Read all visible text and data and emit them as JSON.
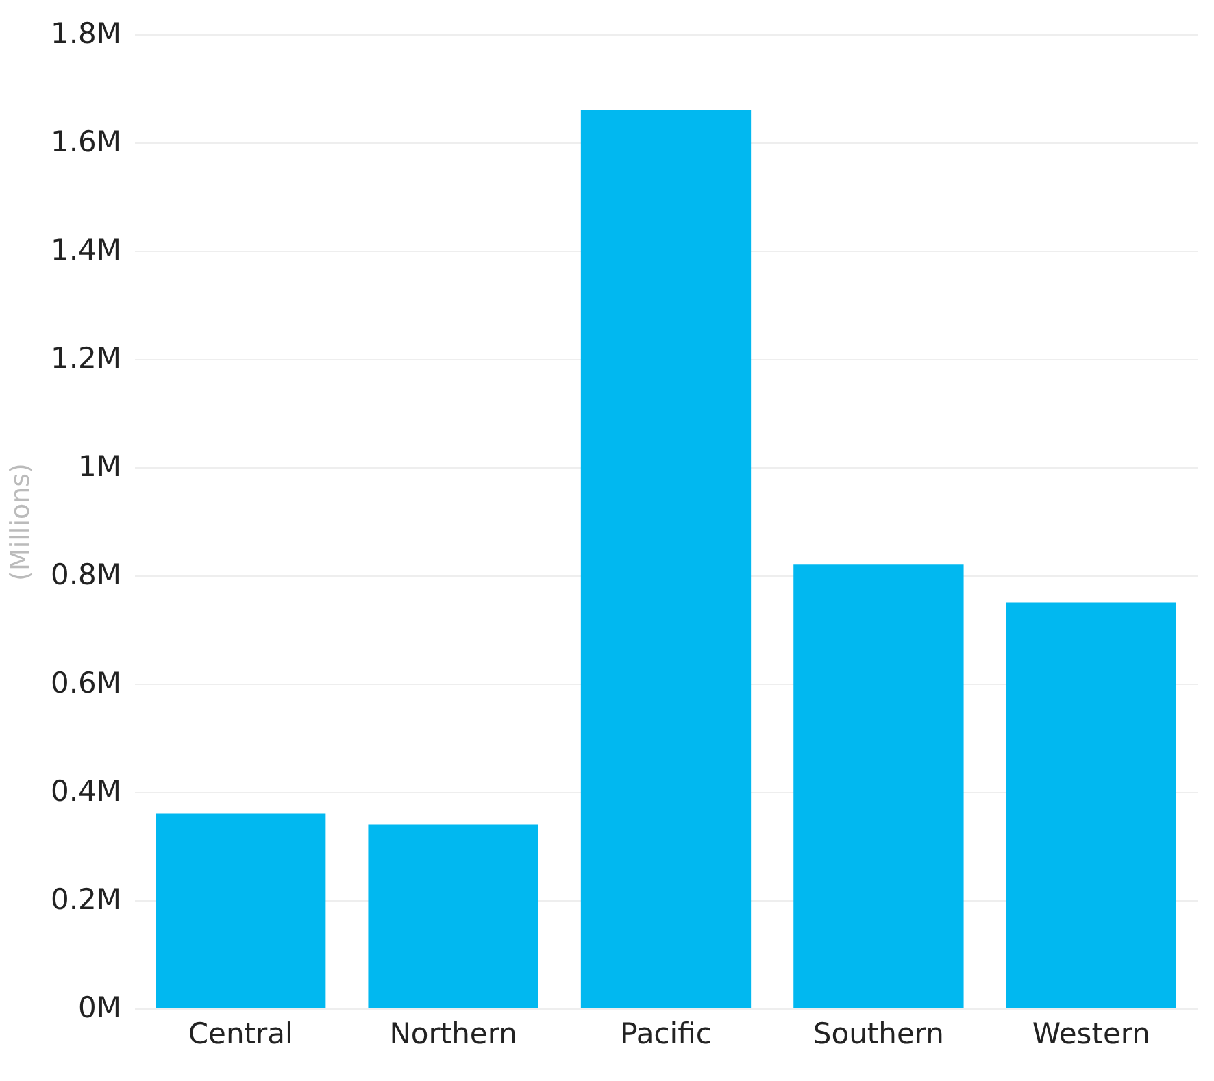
{
  "chart_data": {
    "type": "bar",
    "ylabel": "(Millions)",
    "categories": [
      "Central",
      "Northern",
      "Pacific",
      "Southern",
      "Western"
    ],
    "series": [
      {
        "color": "#01b8f0",
        "values": [
          0.36,
          0.34,
          1.66,
          0.82,
          0.75
        ]
      }
    ],
    "ylim": [
      0,
      1.8
    ],
    "yticks": [
      {
        "value": 0,
        "label": "0M"
      },
      {
        "value": 0.2,
        "label": "0.2M"
      },
      {
        "value": 0.4,
        "label": "0.4M"
      },
      {
        "value": 0.6,
        "label": "0.6M"
      },
      {
        "value": 0.8,
        "label": "0.8M"
      },
      {
        "value": 1,
        "label": "1M"
      },
      {
        "value": 1.2,
        "label": "1.2M"
      },
      {
        "value": 1.4,
        "label": "1.4M"
      },
      {
        "value": 1.6,
        "label": "1.6M"
      },
      {
        "value": 1.8,
        "label": "1.8M"
      }
    ],
    "grid": "y"
  }
}
